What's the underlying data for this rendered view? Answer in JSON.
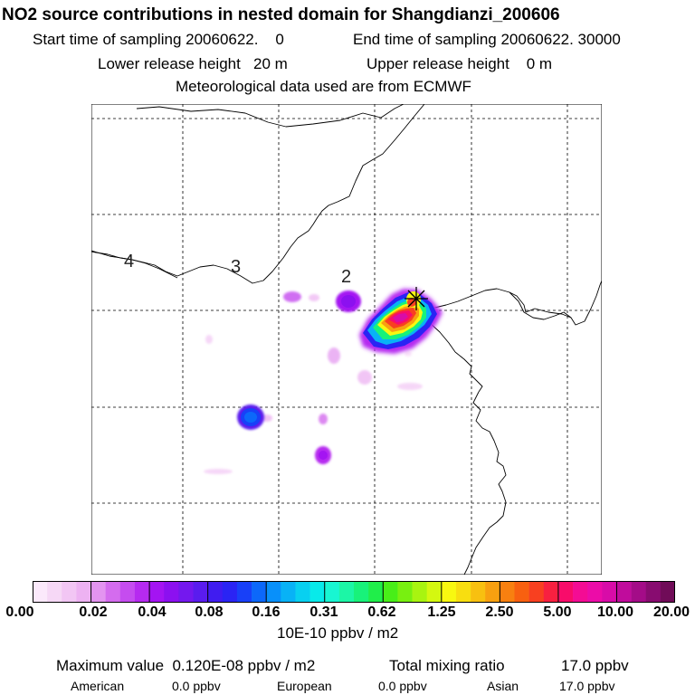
{
  "header": {
    "title": "NO2 source contributions in nested domain for Shangdianzi_200606",
    "start_label": "Start time of sampling 20060622.    0",
    "end_label": "End time of sampling 20060622. 30000",
    "lower_label": "Lower release height   20 m",
    "upper_label": "Upper release height    0 m",
    "met_label": "Meteorological data used are from ECMWF"
  },
  "map": {
    "grid_labels": [
      "4",
      "3",
      "2"
    ],
    "station_marker": "star-marker"
  },
  "colorbar": {
    "ticks": [
      "0.00",
      "0.02",
      "0.04",
      "0.08",
      "0.16",
      "0.31",
      "0.62",
      "1.25",
      "2.50",
      "5.00",
      "10.00",
      "20.00"
    ],
    "unit": "10E-10 ppbv / m2",
    "colors": [
      "#fbe9fb",
      "#f6d8f6",
      "#f2c6f4",
      "#edb2f2",
      "#e394f0",
      "#d46cee",
      "#c54cef",
      "#b62af0",
      "#a414f2",
      "#8c10f0",
      "#7418ee",
      "#5a1cee",
      "#401cf0",
      "#2a24f4",
      "#1840f8",
      "#0c68fa",
      "#0890fa",
      "#08b2f6",
      "#08d0f0",
      "#08eaea",
      "#18f6d2",
      "#1cf6a6",
      "#18f27a",
      "#20ee4a",
      "#48ee18",
      "#78f010",
      "#a8f410",
      "#d4f810",
      "#f8f810",
      "#f8de10",
      "#f8c010",
      "#f8a010",
      "#f88010",
      "#f86010",
      "#f84020",
      "#f82040",
      "#f80c6a",
      "#f40c94",
      "#ec0ca8",
      "#d80ca8",
      "#c00c9c",
      "#a40c88",
      "#880c70",
      "#700c58"
    ]
  },
  "footer": {
    "max_label": "Maximum value  0.120E-08 ppbv / m2",
    "total_label": "Total mixing ratio",
    "total_value": "17.0 ppbv",
    "american_label": "American",
    "american_value": "0.0 ppbv",
    "european_label": "European",
    "european_value": "0.0 ppbv",
    "asian_label": "Asian",
    "asian_value": "17.0 ppbv"
  }
}
